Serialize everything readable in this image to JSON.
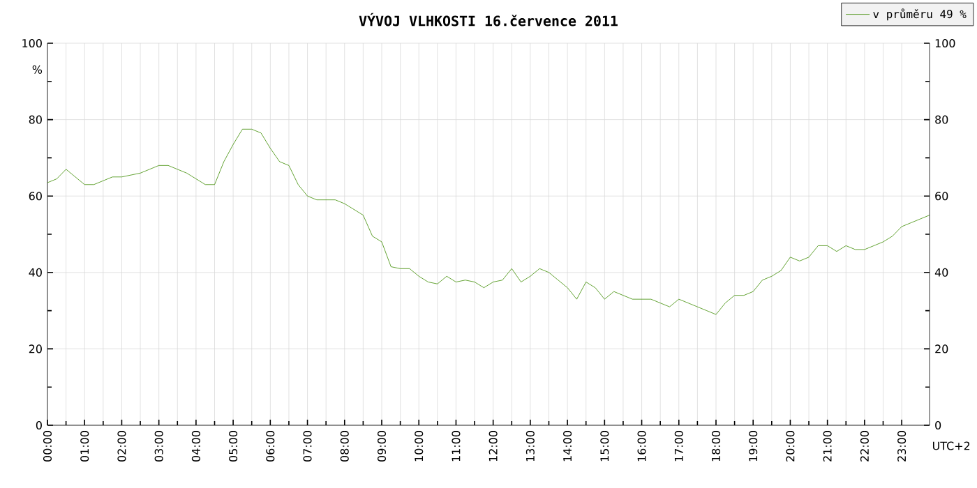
{
  "chart_data": {
    "type": "line",
    "title": "VÝVOJ VLHKOSTI  16.července 2011",
    "xlabel": "UTC+2",
    "ylabel": "%",
    "legend": "top right",
    "grid": true,
    "marker": "none",
    "line_style": "solid",
    "xlim": [
      0,
      23.75
    ],
    "ylim": [
      0,
      100
    ],
    "y2lim": [
      0,
      100
    ],
    "xticks": [
      {
        "value": 0,
        "label": "00:00"
      },
      {
        "value": 1,
        "label": "01:00"
      },
      {
        "value": 2,
        "label": "02:00"
      },
      {
        "value": 3,
        "label": "03:00"
      },
      {
        "value": 4,
        "label": "04:00"
      },
      {
        "value": 5,
        "label": "05:00"
      },
      {
        "value": 6,
        "label": "06:00"
      },
      {
        "value": 7,
        "label": "07:00"
      },
      {
        "value": 8,
        "label": "08:00"
      },
      {
        "value": 9,
        "label": "09:00"
      },
      {
        "value": 10,
        "label": "10:00"
      },
      {
        "value": 11,
        "label": "11:00"
      },
      {
        "value": 12,
        "label": "12:00"
      },
      {
        "value": 13,
        "label": "13:00"
      },
      {
        "value": 14,
        "label": "14:00"
      },
      {
        "value": 15,
        "label": "15:00"
      },
      {
        "value": 16,
        "label": "16:00"
      },
      {
        "value": 17,
        "label": "17:00"
      },
      {
        "value": 18,
        "label": "18:00"
      },
      {
        "value": 19,
        "label": "19:00"
      },
      {
        "value": 20,
        "label": "20:00"
      },
      {
        "value": 21,
        "label": "21:00"
      },
      {
        "value": 22,
        "label": "22:00"
      },
      {
        "value": 23,
        "label": "23:00"
      }
    ],
    "yticks": [
      0,
      20,
      40,
      60,
      80,
      100
    ],
    "y2ticks": [
      0,
      20,
      40,
      60,
      80,
      100
    ],
    "series": [
      {
        "name": "v průměru 49 %",
        "color": "#3c8c00",
        "x": [
          0,
          0.25,
          0.5,
          0.75,
          1,
          1.25,
          1.5,
          1.75,
          2,
          2.25,
          2.5,
          2.75,
          3,
          3.25,
          3.5,
          3.75,
          4,
          4.25,
          4.5,
          4.75,
          5,
          5.25,
          5.5,
          5.75,
          6,
          6.25,
          6.5,
          6.75,
          7,
          7.25,
          7.5,
          7.75,
          8,
          8.25,
          8.5,
          8.75,
          9,
          9.25,
          9.5,
          9.75,
          10,
          10.25,
          10.5,
          10.75,
          11,
          11.25,
          11.5,
          11.75,
          12,
          12.25,
          12.5,
          12.75,
          13,
          13.25,
          13.5,
          13.75,
          14,
          14.25,
          14.5,
          14.75,
          15,
          15.25,
          15.5,
          15.75,
          16,
          16.25,
          16.5,
          16.75,
          17,
          17.25,
          17.5,
          17.75,
          18,
          18.25,
          18.5,
          18.75,
          19,
          19.25,
          19.5,
          19.75,
          20,
          20.25,
          20.5,
          20.75,
          21,
          21.25,
          21.5,
          21.75,
          22,
          22.25,
          22.5,
          22.75,
          23,
          23.25,
          23.5,
          23.75
        ],
        "values": [
          63.5,
          64.5,
          67,
          65,
          63,
          63,
          64,
          65,
          65,
          65.5,
          66,
          67,
          68,
          68,
          67,
          66,
          64.5,
          63,
          63,
          69,
          73.5,
          77.5,
          77.5,
          76.5,
          72.5,
          69,
          68,
          63,
          60,
          59,
          59,
          59,
          58,
          56.5,
          55,
          49.5,
          48,
          41.5,
          41,
          41,
          39,
          37.5,
          37,
          39,
          37.5,
          38,
          37.5,
          36,
          37.5,
          38,
          41,
          37.5,
          39,
          41,
          40,
          38,
          36,
          33,
          37.5,
          36,
          33,
          35,
          34,
          33,
          33,
          33,
          32,
          31,
          33,
          32,
          31,
          30,
          29,
          32,
          34,
          34,
          35,
          38,
          39,
          40.5,
          44,
          43,
          44,
          47,
          47,
          45.5,
          47,
          46,
          46,
          47,
          48,
          49.5,
          52,
          53,
          54,
          55
        ]
      }
    ]
  }
}
